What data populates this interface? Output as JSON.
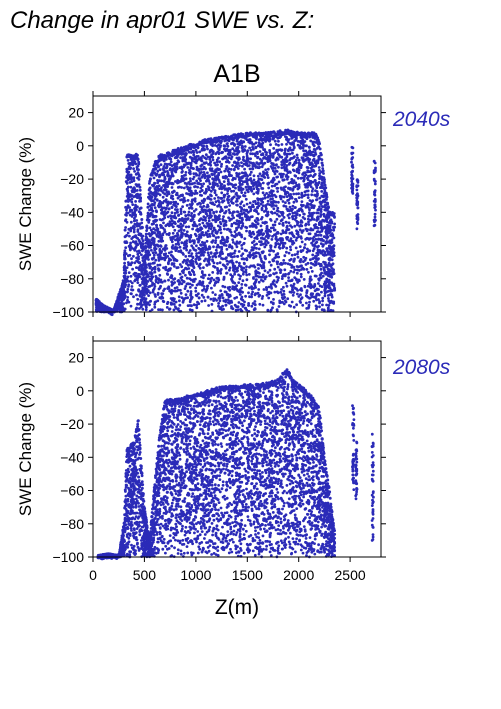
{
  "figure": {
    "title": "Change in apr01 SWE vs. Z:",
    "scenario": "A1B",
    "xlabel": "Z(m)"
  },
  "colors": {
    "points": "#2b2bb8",
    "period_label": "#2b2bb8",
    "axis": "#000000"
  },
  "chart_data": [
    {
      "type": "scatter",
      "period": "2040s",
      "ylabel": "SWE Change (%)",
      "xlim": [
        0,
        2800
      ],
      "ylim": [
        -100,
        30
      ],
      "xticks": [
        0,
        500,
        1000,
        1500,
        2000,
        2500
      ],
      "yticks": [
        -100,
        -80,
        -60,
        -40,
        -20,
        0,
        20
      ],
      "show_xtick_labels": false,
      "envelope": [
        {
          "x": 30,
          "ymin": -100,
          "ymax": -92
        },
        {
          "x": 100,
          "ymin": -100,
          "ymax": -96
        },
        {
          "x": 200,
          "ymin": -100,
          "ymax": -99
        },
        {
          "x": 300,
          "ymin": -100,
          "ymax": -80
        },
        {
          "x": 330,
          "ymin": -100,
          "ymax": -5
        },
        {
          "x": 380,
          "ymin": -100,
          "ymax": -5
        },
        {
          "x": 440,
          "ymin": -100,
          "ymax": -5
        },
        {
          "x": 500,
          "ymin": -100,
          "ymax": -70
        },
        {
          "x": 550,
          "ymin": -100,
          "ymax": -20
        },
        {
          "x": 600,
          "ymin": -100,
          "ymax": -10
        },
        {
          "x": 650,
          "ymin": -100,
          "ymax": -5
        },
        {
          "x": 700,
          "ymin": -100,
          "ymax": -5
        },
        {
          "x": 800,
          "ymin": -100,
          "ymax": -2
        },
        {
          "x": 900,
          "ymin": -100,
          "ymax": 0
        },
        {
          "x": 1000,
          "ymin": -100,
          "ymax": 2
        },
        {
          "x": 1100,
          "ymin": -100,
          "ymax": 4
        },
        {
          "x": 1200,
          "ymin": -100,
          "ymax": 5
        },
        {
          "x": 1300,
          "ymin": -100,
          "ymax": 6
        },
        {
          "x": 1400,
          "ymin": -100,
          "ymax": 7
        },
        {
          "x": 1500,
          "ymin": -100,
          "ymax": 8
        },
        {
          "x": 1600,
          "ymin": -100,
          "ymax": 8
        },
        {
          "x": 1700,
          "ymin": -100,
          "ymax": 8
        },
        {
          "x": 1800,
          "ymin": -100,
          "ymax": 9
        },
        {
          "x": 1900,
          "ymin": -100,
          "ymax": 10
        },
        {
          "x": 2000,
          "ymin": -100,
          "ymax": 8
        },
        {
          "x": 2100,
          "ymin": -100,
          "ymax": 8
        },
        {
          "x": 2150,
          "ymin": -100,
          "ymax": 8
        },
        {
          "x": 2200,
          "ymin": -100,
          "ymax": 5
        },
        {
          "x": 2250,
          "ymin": -100,
          "ymax": -20
        },
        {
          "x": 2300,
          "ymin": -100,
          "ymax": -40
        },
        {
          "x": 2350,
          "ymin": -100,
          "ymax": -40
        }
      ],
      "isolated_columns": [
        {
          "x": 2520,
          "ymin": -30,
          "ymax": 0
        },
        {
          "x": 2570,
          "ymin": -50,
          "ymax": -20
        },
        {
          "x": 2740,
          "ymin": -50,
          "ymax": -8
        }
      ]
    },
    {
      "type": "scatter",
      "period": "2080s",
      "ylabel": "SWE Change (%)",
      "xlim": [
        0,
        2800
      ],
      "ylim": [
        -100,
        30
      ],
      "xticks": [
        0,
        500,
        1000,
        1500,
        2000,
        2500
      ],
      "xtick_labels": [
        "0",
        "500",
        "1000",
        "1500",
        "2000",
        "2500"
      ],
      "yticks": [
        -100,
        -80,
        -60,
        -40,
        -20,
        0,
        20
      ],
      "show_xtick_labels": true,
      "envelope": [
        {
          "x": 50,
          "ymin": -100,
          "ymax": -99
        },
        {
          "x": 150,
          "ymin": -100,
          "ymax": -98
        },
        {
          "x": 250,
          "ymin": -100,
          "ymax": -99
        },
        {
          "x": 300,
          "ymin": -100,
          "ymax": -80
        },
        {
          "x": 330,
          "ymin": -100,
          "ymax": -35
        },
        {
          "x": 400,
          "ymin": -100,
          "ymax": -30
        },
        {
          "x": 440,
          "ymin": -100,
          "ymax": -17
        },
        {
          "x": 500,
          "ymin": -100,
          "ymax": -70
        },
        {
          "x": 550,
          "ymin": -100,
          "ymax": -90
        },
        {
          "x": 600,
          "ymin": -100,
          "ymax": -55
        },
        {
          "x": 650,
          "ymin": -100,
          "ymax": -25
        },
        {
          "x": 700,
          "ymin": -100,
          "ymax": -5
        },
        {
          "x": 800,
          "ymin": -100,
          "ymax": -5
        },
        {
          "x": 900,
          "ymin": -100,
          "ymax": -3
        },
        {
          "x": 1000,
          "ymin": -100,
          "ymax": -2
        },
        {
          "x": 1100,
          "ymin": -100,
          "ymax": 0
        },
        {
          "x": 1200,
          "ymin": -100,
          "ymax": 2
        },
        {
          "x": 1300,
          "ymin": -100,
          "ymax": 3
        },
        {
          "x": 1400,
          "ymin": -100,
          "ymax": 3
        },
        {
          "x": 1500,
          "ymin": -100,
          "ymax": 4
        },
        {
          "x": 1600,
          "ymin": -100,
          "ymax": 4
        },
        {
          "x": 1700,
          "ymin": -100,
          "ymax": 5
        },
        {
          "x": 1800,
          "ymin": -100,
          "ymax": 7
        },
        {
          "x": 1880,
          "ymin": -100,
          "ymax": 14
        },
        {
          "x": 1950,
          "ymin": -100,
          "ymax": 6
        },
        {
          "x": 2050,
          "ymin": -100,
          "ymax": 2
        },
        {
          "x": 2150,
          "ymin": -100,
          "ymax": -5
        },
        {
          "x": 2200,
          "ymin": -100,
          "ymax": -10
        },
        {
          "x": 2250,
          "ymin": -100,
          "ymax": -40
        },
        {
          "x": 2300,
          "ymin": -100,
          "ymax": -60
        },
        {
          "x": 2350,
          "ymin": -100,
          "ymax": -85
        }
      ],
      "isolated_columns": [
        {
          "x": 2530,
          "ymin": -60,
          "ymax": -5
        },
        {
          "x": 2560,
          "ymin": -65,
          "ymax": -30
        },
        {
          "x": 2720,
          "ymin": -90,
          "ymax": -25
        }
      ]
    }
  ]
}
